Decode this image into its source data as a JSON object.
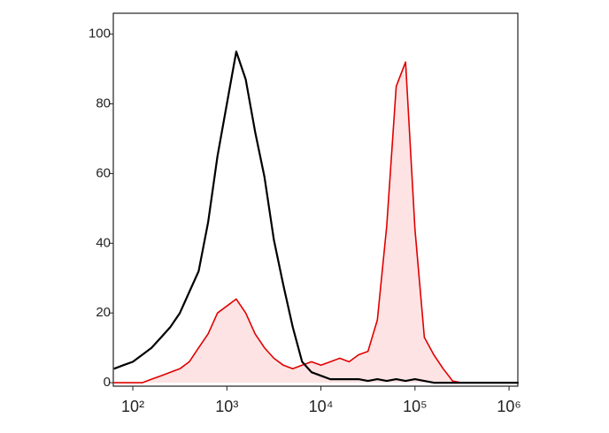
{
  "chart_data": {
    "type": "histogram-overlay",
    "xscale": "log",
    "x": [
      63,
      79,
      100,
      126,
      158,
      200,
      251,
      316,
      398,
      501,
      631,
      794,
      1000,
      1259,
      1585,
      1995,
      2512,
      3162,
      3981,
      5012,
      6310,
      7943,
      10000,
      12589,
      15849,
      19953,
      25119,
      31623,
      39811,
      50119,
      63096,
      79433,
      100000,
      125893,
      158489,
      199526,
      251189,
      316228,
      398107,
      501187,
      630957,
      794328,
      1000000,
      1258925
    ],
    "series": [
      {
        "color": "#e00000",
        "fill": "#fde3e3",
        "filled": true,
        "values": [
          0,
          0,
          0,
          0,
          1,
          2,
          3,
          4,
          6,
          10,
          14,
          20,
          22,
          24,
          20,
          14,
          10,
          7,
          5,
          4,
          5,
          6,
          5,
          6,
          7,
          6,
          8,
          9,
          18,
          45,
          85,
          92,
          44,
          13,
          8,
          4,
          0.5,
          0,
          0,
          0,
          0,
          0,
          0,
          0
        ]
      },
      {
        "color": "#000000",
        "filled": false,
        "values": [
          4,
          5,
          6,
          8,
          10,
          13,
          16,
          20,
          26,
          32,
          46,
          65,
          80,
          95,
          87,
          72,
          59,
          41,
          28,
          16,
          6,
          3,
          2,
          1,
          1,
          1,
          1,
          0.5,
          1,
          0.5,
          1,
          0.5,
          1,
          0.5,
          0,
          0,
          0,
          0,
          0,
          0,
          0,
          0,
          0,
          0
        ]
      }
    ],
    "xlim": [
      62,
      1240000
    ],
    "xticks": [
      {
        "value": 100,
        "label": "10²"
      },
      {
        "value": 1000,
        "label": "10³"
      },
      {
        "value": 10000,
        "label": "10⁴"
      },
      {
        "value": 100000,
        "label": "10⁵"
      },
      {
        "value": 1000000,
        "label": "10⁶"
      }
    ],
    "ylim": [
      -1,
      106
    ],
    "yticks": [
      0,
      20,
      40,
      60,
      80,
      100
    ]
  }
}
